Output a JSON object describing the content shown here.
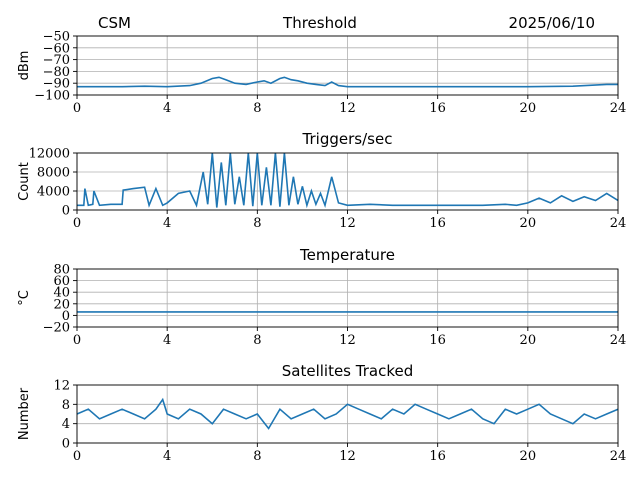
{
  "header": {
    "left": "CSM",
    "center": "Threshold",
    "right": "2025/06/10"
  },
  "colors": {
    "series": "#1f77b4",
    "grid": "#b0b0b0",
    "axis": "#000000"
  },
  "chart_data": [
    {
      "type": "line",
      "title": "",
      "ylabel": "dBm",
      "xlim": [
        0,
        24
      ],
      "ylim": [
        -100,
        -50
      ],
      "xticks": [
        0,
        4,
        8,
        12,
        16,
        20,
        24
      ],
      "yticks": [
        -100,
        -90,
        -80,
        -70,
        -60,
        -50
      ],
      "ytick_labels": [
        "−100",
        "−90",
        "−80",
        "−70",
        "−60",
        "−50"
      ],
      "grid": true,
      "series": [
        {
          "x": [
            0,
            1,
            2,
            3,
            4,
            5,
            5.5,
            6,
            6.3,
            6.6,
            7,
            7.5,
            8,
            8.3,
            8.6,
            9,
            9.2,
            9.5,
            9.8,
            10.2,
            10.6,
            11,
            11.3,
            11.6,
            12,
            14,
            16,
            18,
            20,
            22,
            23.5,
            24
          ],
          "y": [
            -93,
            -93,
            -93,
            -92.5,
            -93,
            -92,
            -90,
            -86,
            -85,
            -87,
            -90,
            -91,
            -89,
            -88,
            -90,
            -86,
            -85,
            -87,
            -88,
            -90,
            -91,
            -92,
            -89,
            -92,
            -93,
            -93,
            -93,
            -93,
            -93,
            -92.5,
            -91,
            -91
          ]
        }
      ]
    },
    {
      "type": "line",
      "title": "Triggers/sec",
      "ylabel": "Count",
      "xlim": [
        0,
        24
      ],
      "ylim": [
        0,
        12000
      ],
      "xticks": [
        0,
        4,
        8,
        12,
        16,
        20,
        24
      ],
      "yticks": [
        0,
        4000,
        8000,
        12000
      ],
      "ytick_labels": [
        "0",
        "4000",
        "8000",
        "12000"
      ],
      "grid": true,
      "series": [
        {
          "x": [
            0,
            0.3,
            0.35,
            0.5,
            0.7,
            0.75,
            1,
            1.5,
            2,
            2.05,
            2.5,
            3,
            3.2,
            3.5,
            3.8,
            4,
            4.5,
            5,
            5.3,
            5.6,
            5.8,
            6,
            6.2,
            6.4,
            6.6,
            6.8,
            7,
            7.2,
            7.4,
            7.6,
            7.8,
            8,
            8.2,
            8.4,
            8.6,
            8.8,
            9,
            9.2,
            9.4,
            9.6,
            9.8,
            10,
            10.2,
            10.4,
            10.6,
            10.8,
            11,
            11.3,
            11.6,
            12,
            13,
            14,
            15,
            16,
            17,
            18,
            19,
            19.5,
            20,
            20.5,
            21,
            21.5,
            22,
            22.5,
            23,
            23.5,
            24
          ],
          "y": [
            1000,
            1000,
            4500,
            1000,
            1200,
            4000,
            1000,
            1200,
            1200,
            4200,
            4500,
            4800,
            1000,
            4500,
            1000,
            1500,
            3500,
            4000,
            1000,
            8000,
            1200,
            12000,
            500,
            10000,
            1000,
            12000,
            1200,
            7000,
            1000,
            12000,
            800,
            12000,
            1000,
            9000,
            1000,
            12000,
            700,
            12000,
            1000,
            7000,
            1200,
            5000,
            1000,
            4000,
            1200,
            3500,
            1000,
            7000,
            1500,
            1000,
            1200,
            1000,
            1000,
            1000,
            1000,
            1000,
            1200,
            1000,
            1500,
            2500,
            1500,
            3000,
            1800,
            2800,
            2000,
            3500,
            2000
          ]
        }
      ]
    },
    {
      "type": "line",
      "title": "Temperature",
      "ylabel": "°C",
      "xlim": [
        0,
        24
      ],
      "ylim": [
        -20,
        80
      ],
      "xticks": [
        0,
        4,
        8,
        12,
        16,
        20,
        24
      ],
      "yticks": [
        -20,
        0,
        20,
        40,
        60,
        80
      ],
      "ytick_labels": [
        "−20",
        "0",
        "20",
        "40",
        "60",
        "80"
      ],
      "grid": true,
      "series": [
        {
          "x": [
            0,
            24
          ],
          "y": [
            6,
            6
          ]
        }
      ]
    },
    {
      "type": "line",
      "title": "Satellites Tracked",
      "ylabel": "Number",
      "xlim": [
        0,
        24
      ],
      "ylim": [
        0,
        12
      ],
      "xticks": [
        0,
        4,
        8,
        12,
        16,
        20,
        24
      ],
      "yticks": [
        0,
        4,
        8,
        12
      ],
      "ytick_labels": [
        "0",
        "4",
        "8",
        "12"
      ],
      "grid": true,
      "series": [
        {
          "x": [
            0,
            0.5,
            1,
            1.5,
            2,
            2.5,
            3,
            3.5,
            3.8,
            4,
            4.5,
            5,
            5.5,
            6,
            6.5,
            7,
            7.5,
            8,
            8.5,
            9,
            9.5,
            10,
            10.5,
            11,
            11.5,
            12,
            12.5,
            13,
            13.5,
            14,
            14.5,
            15,
            15.5,
            16,
            16.5,
            17,
            17.5,
            18,
            18.5,
            19,
            19.5,
            20,
            20.5,
            21,
            21.5,
            22,
            22.5,
            23,
            23.5,
            24
          ],
          "y": [
            6,
            7,
            5,
            6,
            7,
            6,
            5,
            7,
            9,
            6,
            5,
            7,
            6,
            4,
            7,
            6,
            5,
            6,
            3,
            7,
            5,
            6,
            7,
            5,
            6,
            8,
            7,
            6,
            5,
            7,
            6,
            8,
            7,
            6,
            5,
            6,
            7,
            5,
            4,
            7,
            6,
            7,
            8,
            6,
            5,
            4,
            6,
            5,
            6,
            7
          ]
        }
      ]
    }
  ]
}
